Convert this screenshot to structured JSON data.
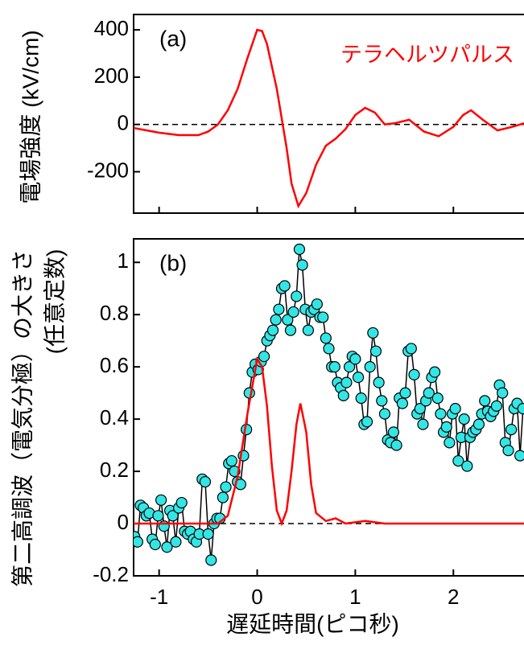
{
  "chart_data": [
    {
      "type": "line",
      "annotation": "(a)",
      "ylabel": "電場強度 (kV/cm)",
      "xlim": [
        -1.26,
        2.72
      ],
      "ylim": [
        -375,
        465
      ],
      "yticks": [
        400,
        200,
        0,
        -200
      ],
      "xticks": [
        -1,
        0,
        1,
        2
      ],
      "xticklabels": false,
      "hline": 0,
      "legend": "upper right",
      "series": [
        {
          "name": "テラヘルツパルス",
          "color": "#ff0000",
          "x": [
            -1.26,
            -1.0,
            -0.8,
            -0.6,
            -0.5,
            -0.4,
            -0.3,
            -0.2,
            -0.1,
            0.0,
            0.05,
            0.1,
            0.2,
            0.3,
            0.35,
            0.42,
            0.5,
            0.6,
            0.7,
            0.8,
            0.9,
            1.0,
            1.1,
            1.2,
            1.3,
            1.4,
            1.55,
            1.7,
            1.85,
            2.0,
            2.1,
            2.18,
            2.3,
            2.45,
            2.6,
            2.72
          ],
          "values": [
            -15,
            -35,
            -45,
            -45,
            -30,
            0,
            60,
            150,
            280,
            400,
            395,
            340,
            150,
            -100,
            -250,
            -345,
            -290,
            -170,
            -90,
            -60,
            -20,
            40,
            70,
            50,
            0,
            5,
            20,
            -30,
            -50,
            -10,
            40,
            60,
            20,
            -25,
            -10,
            5
          ]
        }
      ]
    },
    {
      "type": "line",
      "annotation": "(b)",
      "ylabel_lines": [
        "第二高調波（電気分極）の大きさ",
        "(任意定数)"
      ],
      "xlabel": "遅延時間(ピコ秒)",
      "xlim": [
        -1.26,
        2.72
      ],
      "ylim": [
        -0.2,
        1.09
      ],
      "yticks": [
        1,
        0.8,
        0.6,
        0.4,
        0.2,
        0,
        -0.2
      ],
      "xticks": [
        -1,
        0,
        1,
        2
      ],
      "xticklabels": true,
      "hline": 0,
      "series": [
        {
          "color": "#000000",
          "marker": "circle",
          "marker_color": "#33e6e6",
          "x": [
            -1.25,
            -1.22,
            -1.19,
            -1.16,
            -1.13,
            -1.1,
            -1.07,
            -1.04,
            -1.01,
            -0.98,
            -0.95,
            -0.92,
            -0.89,
            -0.86,
            -0.83,
            -0.8,
            -0.77,
            -0.74,
            -0.71,
            -0.68,
            -0.65,
            -0.62,
            -0.59,
            -0.56,
            -0.53,
            -0.5,
            -0.47,
            -0.44,
            -0.41,
            -0.38,
            -0.35,
            -0.32,
            -0.29,
            -0.26,
            -0.23,
            -0.2,
            -0.17,
            -0.14,
            -0.11,
            -0.08,
            -0.05,
            -0.02,
            0.01,
            0.04,
            0.07,
            0.1,
            0.13,
            0.16,
            0.19,
            0.22,
            0.25,
            0.28,
            0.31,
            0.34,
            0.37,
            0.4,
            0.43,
            0.46,
            0.49,
            0.52,
            0.55,
            0.58,
            0.61,
            0.64,
            0.67,
            0.7,
            0.73,
            0.76,
            0.79,
            0.82,
            0.85,
            0.88,
            0.91,
            0.94,
            0.97,
            1.0,
            1.03,
            1.06,
            1.09,
            1.12,
            1.15,
            1.18,
            1.21,
            1.24,
            1.27,
            1.3,
            1.33,
            1.36,
            1.39,
            1.42,
            1.45,
            1.48,
            1.51,
            1.54,
            1.57,
            1.6,
            1.63,
            1.66,
            1.69,
            1.72,
            1.75,
            1.78,
            1.81,
            1.84,
            1.87,
            1.9,
            1.93,
            1.96,
            1.99,
            2.02,
            2.05,
            2.08,
            2.11,
            2.14,
            2.17,
            2.2,
            2.23,
            2.26,
            2.29,
            2.32,
            2.35,
            2.38,
            2.41,
            2.44,
            2.47,
            2.5,
            2.53,
            2.56,
            2.59,
            2.62,
            2.65,
            2.68,
            2.71
          ],
          "values": [
            -0.05,
            -0.07,
            0.07,
            0.06,
            0.03,
            0.04,
            -0.06,
            -0.08,
            0.03,
            0.09,
            -0.01,
            -0.09,
            0.05,
            0.03,
            -0.07,
            0.06,
            0.08,
            -0.03,
            -0.04,
            -0.03,
            -0.06,
            -0.07,
            -0.04,
            0.17,
            0.16,
            -0.04,
            -0.14,
            0.0,
            0.02,
            0.02,
            0.1,
            0.14,
            0.23,
            0.24,
            0.2,
            0.16,
            0.15,
            0.26,
            0.36,
            0.5,
            0.58,
            0.61,
            0.59,
            0.62,
            0.64,
            0.7,
            0.72,
            0.74,
            0.78,
            0.82,
            0.9,
            0.91,
            0.78,
            0.74,
            0.81,
            0.87,
            1.05,
            0.99,
            0.82,
            0.74,
            0.81,
            0.82,
            0.84,
            0.79,
            0.79,
            0.71,
            0.67,
            0.6,
            0.6,
            0.54,
            0.52,
            0.49,
            0.54,
            0.6,
            0.64,
            0.63,
            0.56,
            0.48,
            0.38,
            0.39,
            0.6,
            0.73,
            0.66,
            0.54,
            0.47,
            0.42,
            0.32,
            0.31,
            0.35,
            0.3,
            0.48,
            0.46,
            0.5,
            0.66,
            0.67,
            0.57,
            0.42,
            0.44,
            0.38,
            0.47,
            0.5,
            0.56,
            0.58,
            0.48,
            0.42,
            0.35,
            0.37,
            0.31,
            0.42,
            0.44,
            0.24,
            0.33,
            0.4,
            0.22,
            0.33,
            0.35,
            0.36,
            0.38,
            0.42,
            0.47,
            0.43,
            0.41,
            0.43,
            0.45,
            0.53,
            0.5,
            0.31,
            0.28,
            0.36,
            0.44,
            0.46,
            0.26,
            0.44
          ]
        },
        {
          "color": "#ff0000",
          "x": [
            -1.26,
            -0.4,
            -0.3,
            -0.2,
            -0.1,
            0.0,
            0.05,
            0.1,
            0.15,
            0.2,
            0.25,
            0.3,
            0.35,
            0.4,
            0.44,
            0.5,
            0.55,
            0.6,
            0.7,
            0.8,
            0.9,
            1.1,
            1.3,
            2.72
          ],
          "values": [
            0,
            0,
            0.03,
            0.18,
            0.42,
            0.63,
            0.6,
            0.45,
            0.22,
            0.05,
            0,
            0.05,
            0.2,
            0.38,
            0.46,
            0.35,
            0.15,
            0.04,
            0.01,
            0.02,
            0,
            0.01,
            0,
            0
          ]
        }
      ]
    }
  ]
}
